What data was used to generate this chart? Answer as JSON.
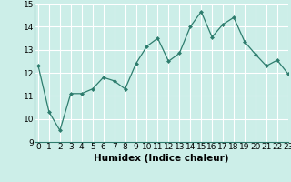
{
  "x": [
    0,
    1,
    2,
    3,
    4,
    5,
    6,
    7,
    8,
    9,
    10,
    11,
    12,
    13,
    14,
    15,
    16,
    17,
    18,
    19,
    20,
    21,
    22,
    23
  ],
  "y": [
    12.3,
    10.3,
    9.5,
    11.1,
    11.1,
    11.3,
    11.8,
    11.65,
    11.3,
    12.4,
    13.15,
    13.5,
    12.5,
    12.85,
    14.0,
    14.65,
    13.55,
    14.1,
    14.4,
    13.35,
    12.8,
    12.3,
    12.55,
    11.95
  ],
  "xlabel": "Humidex (Indice chaleur)",
  "ylim": [
    9,
    15
  ],
  "xlim": [
    -0.3,
    23
  ],
  "yticks": [
    9,
    10,
    11,
    12,
    13,
    14,
    15
  ],
  "xticks": [
    0,
    1,
    2,
    3,
    4,
    5,
    6,
    7,
    8,
    9,
    10,
    11,
    12,
    13,
    14,
    15,
    16,
    17,
    18,
    19,
    20,
    21,
    22,
    23
  ],
  "line_color": "#2e7d6e",
  "marker_color": "#2e7d6e",
  "bg_color": "#cceee8",
  "grid_color": "#ffffff",
  "xlabel_fontsize": 7.5,
  "tick_fontsize": 6.5
}
